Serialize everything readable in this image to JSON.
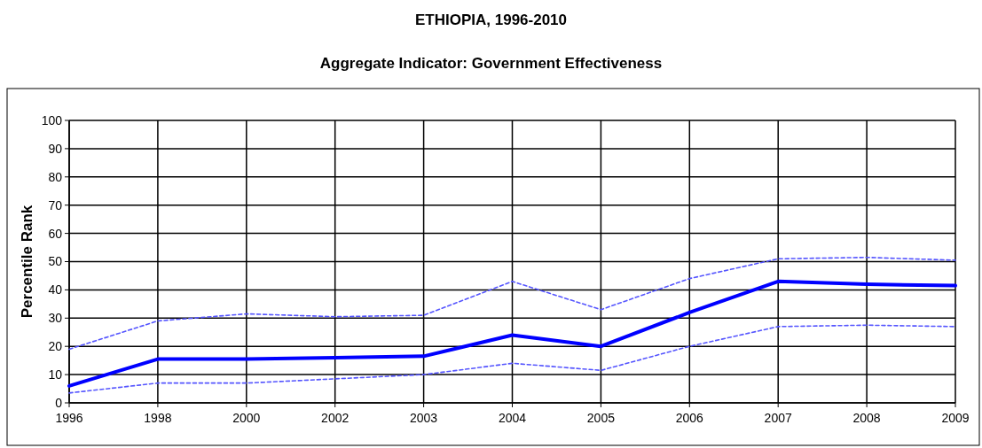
{
  "chart_data": {
    "type": "line",
    "title": "ETHIOPIA, 1996-2010",
    "subtitle": "Aggregate Indicator: Government Effectiveness",
    "ylabel": "Percentile Rank",
    "categories": [
      "1996",
      "1998",
      "2000",
      "2002",
      "2003",
      "2004",
      "2005",
      "2006",
      "2007",
      "2008",
      "2009"
    ],
    "series": [
      {
        "color": "#0000ff",
        "line_style": "solid",
        "values": [
          6,
          15.5,
          15.5,
          16,
          16.5,
          24,
          20,
          32,
          43,
          42,
          41.5
        ]
      },
      {
        "color": "#5555ff",
        "line_style": "dashed",
        "values": [
          19,
          29,
          31.5,
          30.5,
          31,
          43,
          33,
          44,
          51,
          51.5,
          50.5
        ]
      },
      {
        "color": "#5555ff",
        "line_style": "dashed",
        "values": [
          3.5,
          7,
          7,
          8.5,
          10,
          14,
          11.5,
          20,
          27,
          27.5,
          27
        ]
      }
    ],
    "ylim": [
      0,
      100
    ],
    "yticks": [
      0,
      10,
      20,
      30,
      40,
      50,
      60,
      70,
      80,
      90,
      100
    ],
    "grid": true,
    "marker": "none"
  }
}
